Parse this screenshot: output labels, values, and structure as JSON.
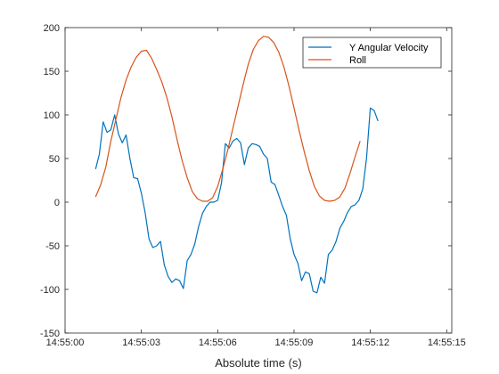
{
  "chart_data": {
    "type": "line",
    "title": "",
    "xlabel": "Absolute time (s)",
    "ylabel": "",
    "xlim": [
      0,
      15.2
    ],
    "ylim": [
      -150,
      200
    ],
    "x_ticks": [
      0,
      3,
      6,
      9,
      12,
      15
    ],
    "x_tick_labels": [
      "14:55:00",
      "14:55:03",
      "14:55:06",
      "14:55:09",
      "14:55:12",
      "14:55:15"
    ],
    "y_ticks": [
      -150,
      -100,
      -50,
      0,
      50,
      100,
      150,
      200
    ],
    "y_tick_labels": [
      "-150",
      "-100",
      "-50",
      "0",
      "50",
      "100",
      "150",
      "200"
    ],
    "grid": false,
    "legend_position": "top-right",
    "series": [
      {
        "name": "Y Angular Velocity",
        "color": "#0072BD",
        "points": [
          [
            1.2,
            38
          ],
          [
            1.35,
            55
          ],
          [
            1.5,
            92
          ],
          [
            1.65,
            80
          ],
          [
            1.8,
            83
          ],
          [
            1.95,
            100
          ],
          [
            2.1,
            78
          ],
          [
            2.25,
            68
          ],
          [
            2.4,
            77
          ],
          [
            2.55,
            50
          ],
          [
            2.7,
            28
          ],
          [
            2.85,
            27
          ],
          [
            3.0,
            10
          ],
          [
            3.15,
            -12
          ],
          [
            3.3,
            -42
          ],
          [
            3.45,
            -52
          ],
          [
            3.6,
            -50
          ],
          [
            3.75,
            -45
          ],
          [
            3.9,
            -72
          ],
          [
            4.05,
            -85
          ],
          [
            4.2,
            -92
          ],
          [
            4.35,
            -88
          ],
          [
            4.5,
            -90
          ],
          [
            4.65,
            -99
          ],
          [
            4.8,
            -67
          ],
          [
            4.95,
            -60
          ],
          [
            5.1,
            -48
          ],
          [
            5.25,
            -28
          ],
          [
            5.4,
            -13
          ],
          [
            5.55,
            -5
          ],
          [
            5.7,
            0
          ],
          [
            5.85,
            0
          ],
          [
            6.0,
            2
          ],
          [
            6.15,
            22
          ],
          [
            6.3,
            67
          ],
          [
            6.45,
            62
          ],
          [
            6.6,
            70
          ],
          [
            6.75,
            73
          ],
          [
            6.9,
            68
          ],
          [
            7.05,
            43
          ],
          [
            7.2,
            62
          ],
          [
            7.35,
            67
          ],
          [
            7.5,
            66
          ],
          [
            7.65,
            64
          ],
          [
            7.8,
            55
          ],
          [
            7.95,
            50
          ],
          [
            8.1,
            23
          ],
          [
            8.25,
            20
          ],
          [
            8.4,
            8
          ],
          [
            8.55,
            -5
          ],
          [
            8.7,
            -15
          ],
          [
            8.85,
            -42
          ],
          [
            9.0,
            -60
          ],
          [
            9.15,
            -70
          ],
          [
            9.3,
            -90
          ],
          [
            9.45,
            -80
          ],
          [
            9.6,
            -82
          ],
          [
            9.75,
            -102
          ],
          [
            9.9,
            -104
          ],
          [
            10.05,
            -86
          ],
          [
            10.2,
            -93
          ],
          [
            10.35,
            -60
          ],
          [
            10.5,
            -55
          ],
          [
            10.65,
            -45
          ],
          [
            10.8,
            -30
          ],
          [
            10.95,
            -22
          ],
          [
            11.1,
            -12
          ],
          [
            11.25,
            -5
          ],
          [
            11.4,
            -3
          ],
          [
            11.55,
            2
          ],
          [
            11.7,
            15
          ],
          [
            11.85,
            50
          ],
          [
            12.0,
            108
          ],
          [
            12.15,
            105
          ],
          [
            12.3,
            93
          ]
        ]
      },
      {
        "name": "Roll",
        "color": "#D95319",
        "points": [
          [
            1.2,
            6
          ],
          [
            1.4,
            20
          ],
          [
            1.6,
            40
          ],
          [
            1.8,
            70
          ],
          [
            2.0,
            95
          ],
          [
            2.2,
            120
          ],
          [
            2.4,
            140
          ],
          [
            2.6,
            155
          ],
          [
            2.8,
            166
          ],
          [
            3.0,
            173
          ],
          [
            3.2,
            174
          ],
          [
            3.4,
            165
          ],
          [
            3.6,
            152
          ],
          [
            3.8,
            138
          ],
          [
            4.0,
            120
          ],
          [
            4.2,
            98
          ],
          [
            4.4,
            72
          ],
          [
            4.6,
            48
          ],
          [
            4.8,
            28
          ],
          [
            5.0,
            12
          ],
          [
            5.2,
            4
          ],
          [
            5.4,
            1
          ],
          [
            5.6,
            1
          ],
          [
            5.8,
            5
          ],
          [
            6.0,
            18
          ],
          [
            6.2,
            38
          ],
          [
            6.4,
            60
          ],
          [
            6.6,
            85
          ],
          [
            6.8,
            110
          ],
          [
            7.0,
            135
          ],
          [
            7.2,
            158
          ],
          [
            7.4,
            175
          ],
          [
            7.6,
            185
          ],
          [
            7.8,
            190
          ],
          [
            8.0,
            189
          ],
          [
            8.2,
            183
          ],
          [
            8.4,
            172
          ],
          [
            8.6,
            155
          ],
          [
            8.8,
            133
          ],
          [
            9.0,
            108
          ],
          [
            9.2,
            82
          ],
          [
            9.4,
            58
          ],
          [
            9.6,
            36
          ],
          [
            9.8,
            18
          ],
          [
            10.0,
            7
          ],
          [
            10.2,
            2
          ],
          [
            10.4,
            1
          ],
          [
            10.6,
            2
          ],
          [
            10.8,
            6
          ],
          [
            11.0,
            16
          ],
          [
            11.2,
            33
          ],
          [
            11.4,
            52
          ],
          [
            11.6,
            70
          ]
        ]
      }
    ]
  }
}
